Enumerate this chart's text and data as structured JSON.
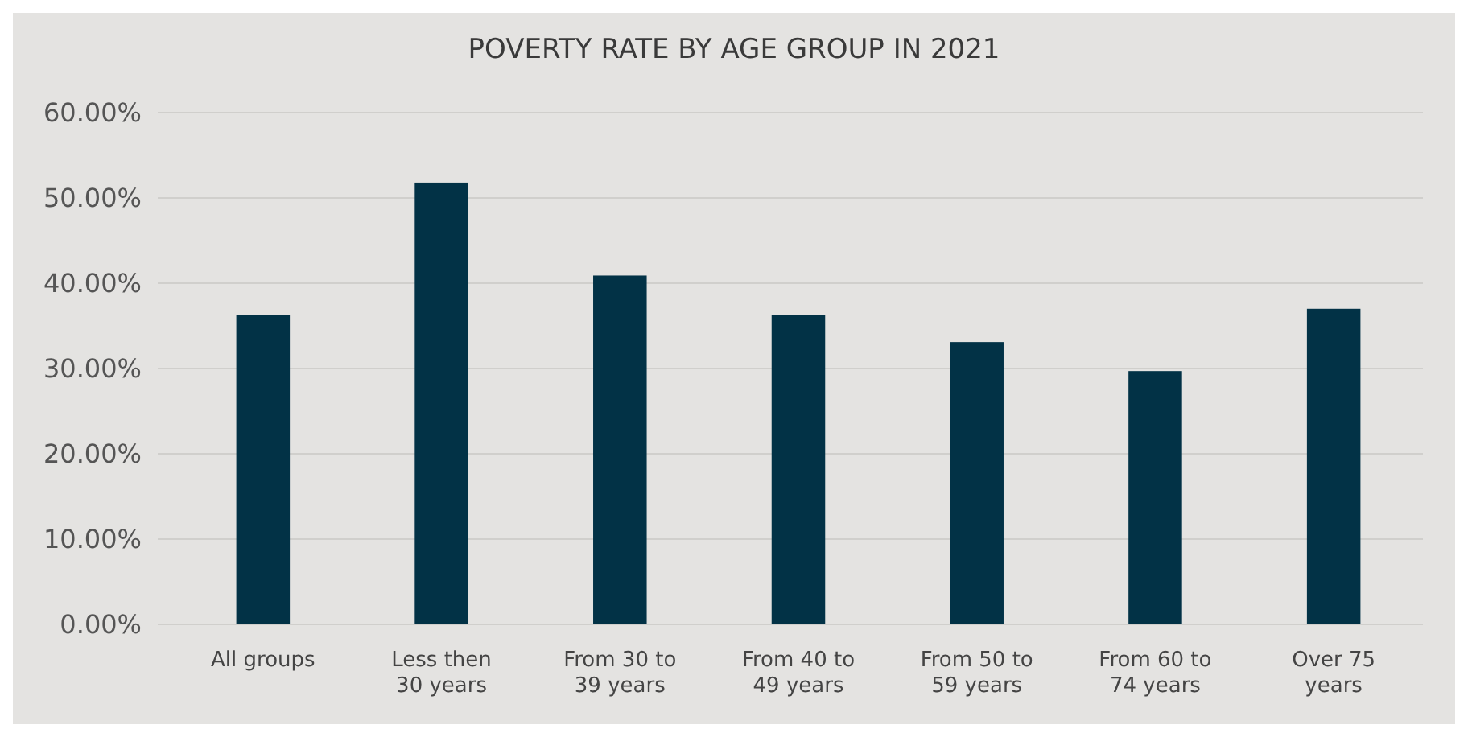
{
  "chart_data": {
    "type": "bar",
    "title": "POVERTY RATE BY AGE GROUP IN 2021",
    "categories": [
      "All groups",
      "Less then 30 years",
      "From 30 to 39 years",
      "From 40 to 49 years",
      "From 50 to 59 years",
      "From 60 to 74 years",
      "Over 75 years"
    ],
    "values": [
      36.3,
      51.8,
      40.9,
      36.3,
      33.1,
      29.7,
      37.0
    ],
    "color": "#023246",
    "ylim": [
      0,
      60
    ],
    "yticks": [
      {
        "value": 0,
        "label": "0.00%"
      },
      {
        "value": 10,
        "label": "10.00%"
      },
      {
        "value": 20,
        "label": "20.00%"
      },
      {
        "value": 30,
        "label": "30.00%"
      },
      {
        "value": 40,
        "label": "40.00%"
      },
      {
        "value": 50,
        "label": "50.00%"
      },
      {
        "value": 60,
        "label": "60.00%"
      }
    ],
    "grid": "y"
  }
}
